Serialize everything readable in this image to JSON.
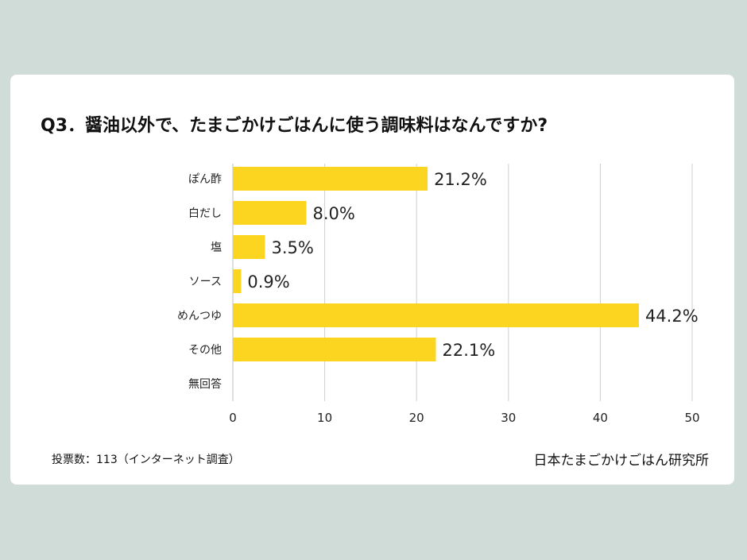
{
  "title": "Q3．醤油以外で、たまごかけごはんに使う調味料はなんですか?",
  "footer": {
    "note": "投票数：113（インターネット調査）",
    "source": "日本たまごかけごはん研究所"
  },
  "colors": {
    "bar": "#fcd520",
    "grid": "#cfcfcf",
    "background": "#cfdcd8",
    "card": "#ffffff"
  },
  "chart_data": {
    "type": "bar",
    "orientation": "horizontal",
    "categories": [
      "ぽん酢",
      "白だし",
      "塩",
      "ソース",
      "めんつゆ",
      "その他",
      "無回答"
    ],
    "values": [
      21.2,
      8.0,
      3.5,
      0.9,
      44.2,
      22.1,
      0
    ],
    "data_labels": [
      "21.2%",
      "8.0%",
      "3.5%",
      "0.9%",
      "44.2%",
      "22.1%",
      ""
    ],
    "xlim": [
      0,
      50
    ],
    "xticks": [
      0,
      10,
      20,
      30,
      40,
      50
    ],
    "grid": true,
    "legend": "none"
  }
}
